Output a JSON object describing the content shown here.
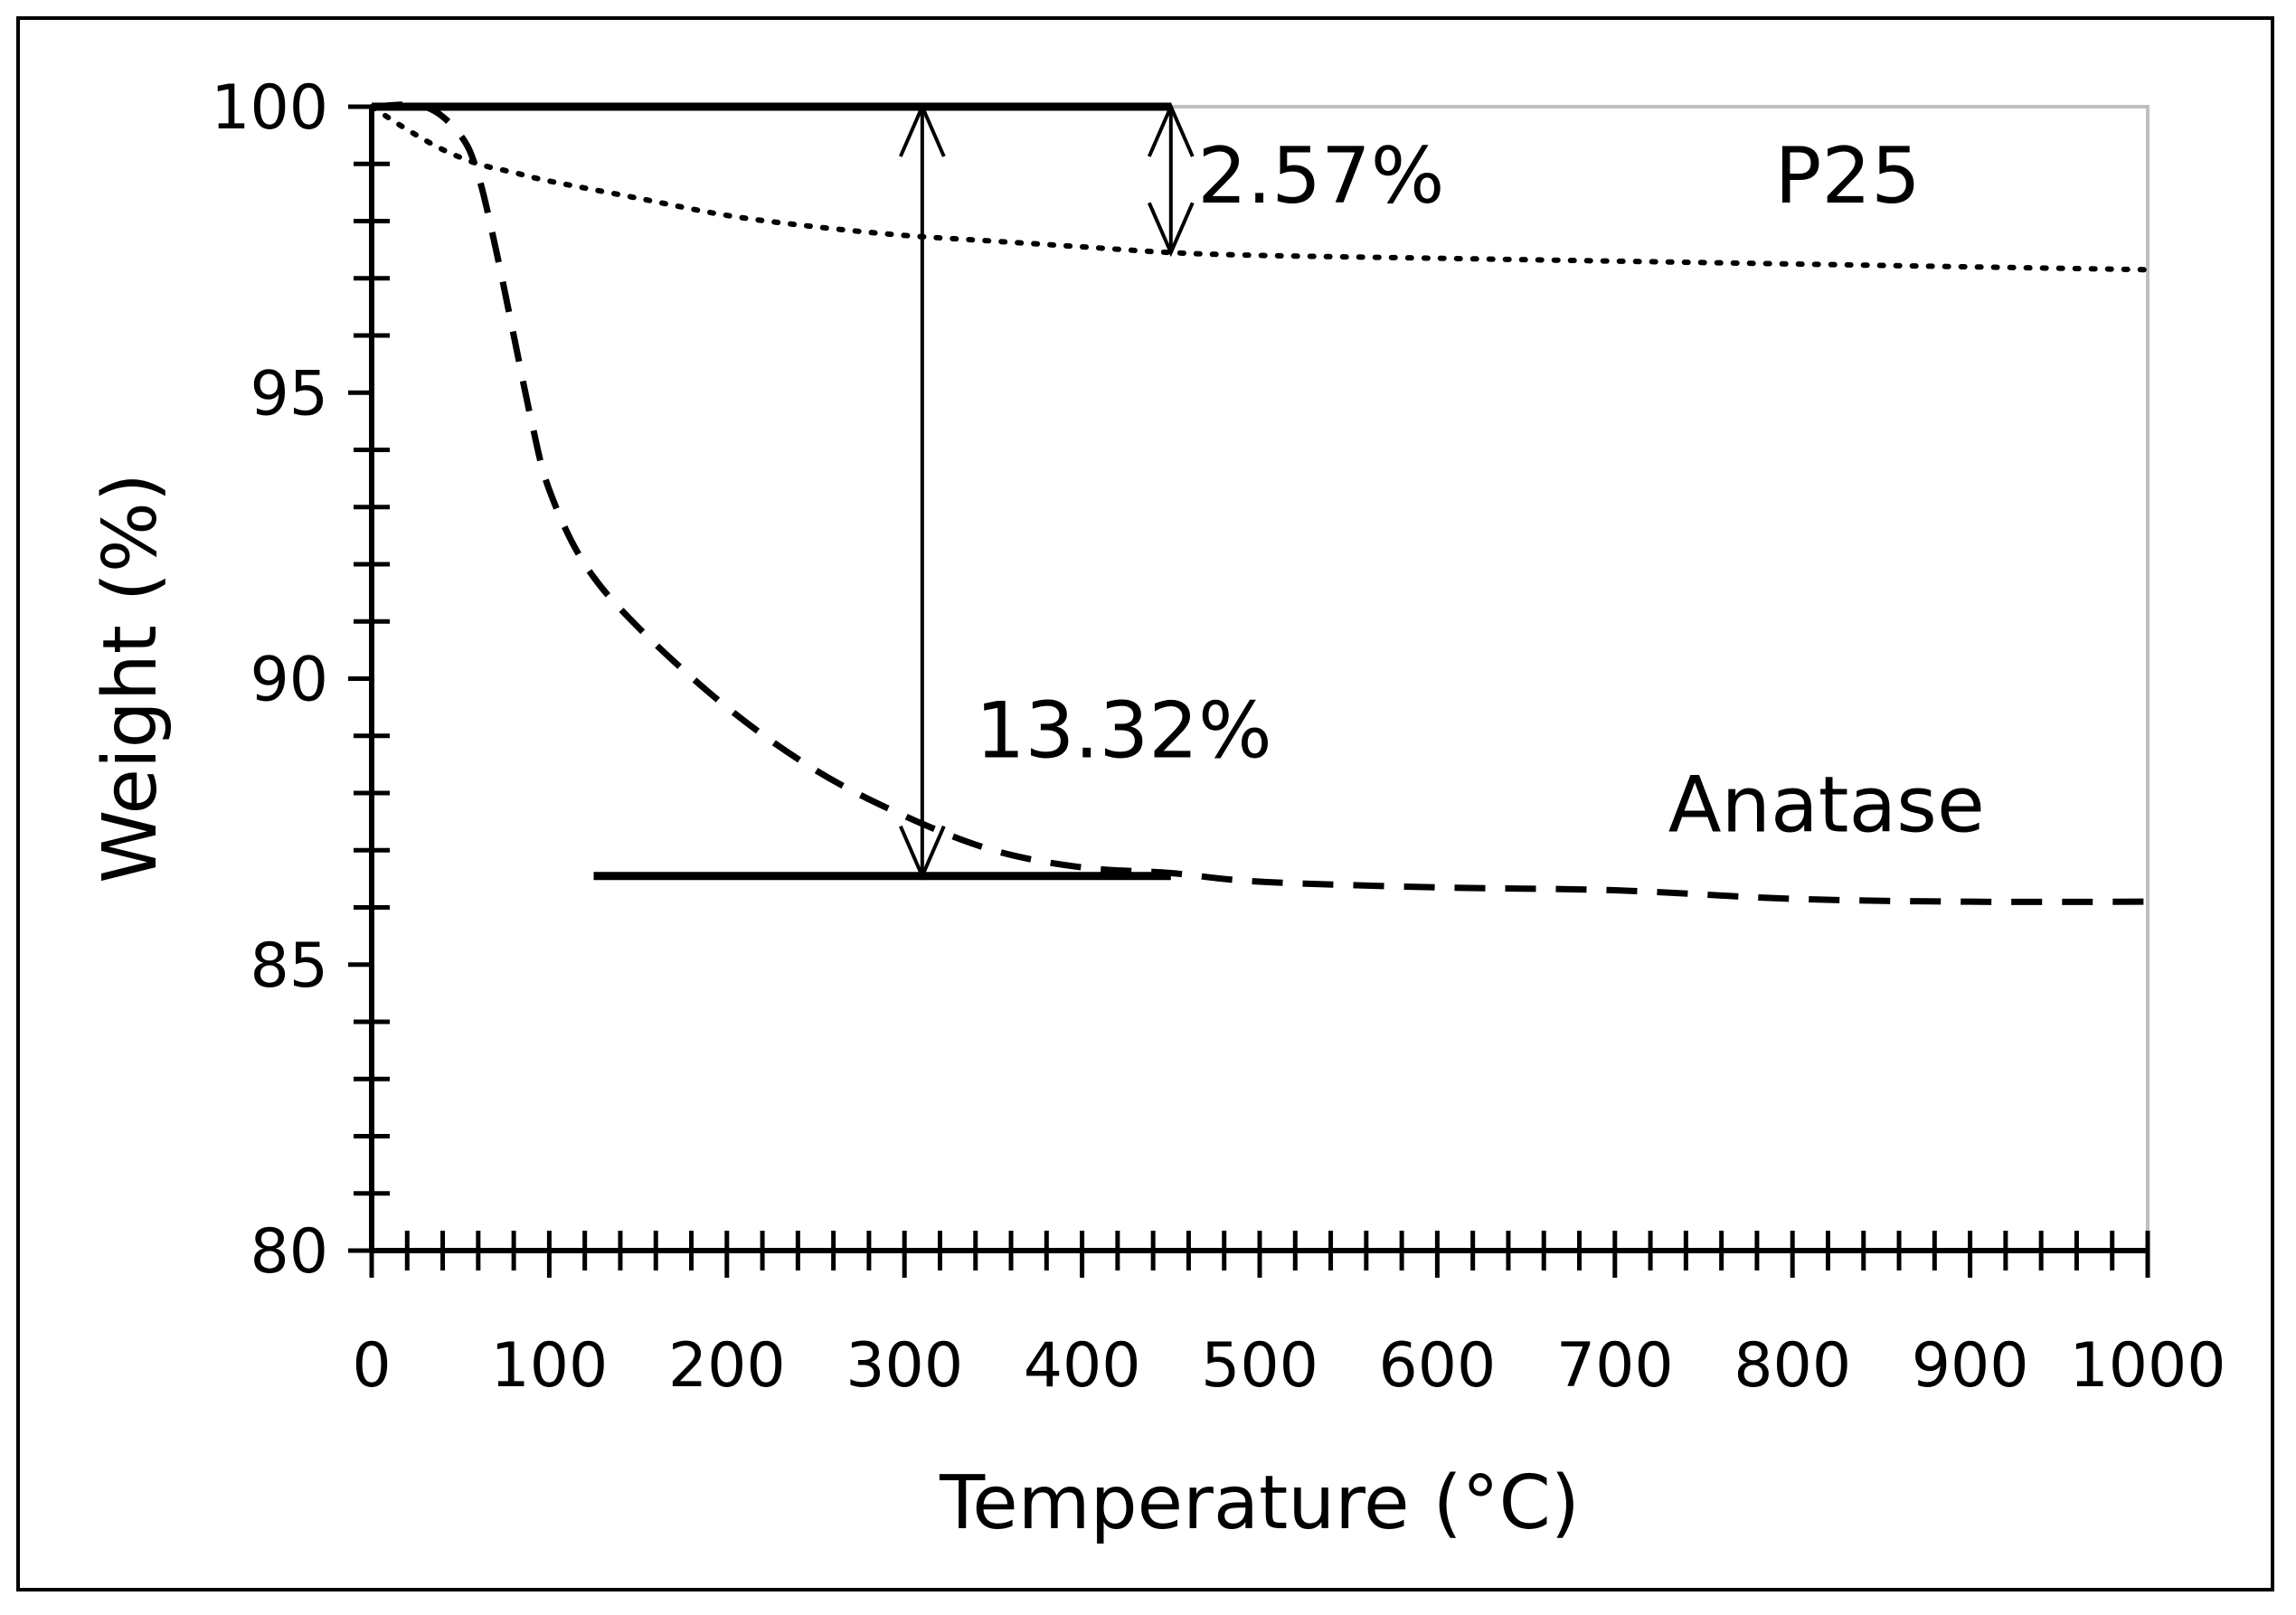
{
  "chart_data": {
    "type": "line",
    "title": "",
    "xlabel": "Temperature (°C)",
    "ylabel": "Weight (%)",
    "xlim": [
      0,
      1000
    ],
    "ylim": [
      80,
      100
    ],
    "x_ticks": [
      "0",
      "100",
      "200",
      "300",
      "400",
      "500",
      "600",
      "700",
      "800",
      "900",
      "1000"
    ],
    "y_ticks": [
      "80",
      "85",
      "90",
      "95",
      "100"
    ],
    "series": [
      {
        "name": "P25",
        "style": "dotted",
        "x": [
          0,
          20,
          40,
          60,
          80,
          100,
          150,
          200,
          250,
          300,
          350,
          400,
          450,
          500,
          600,
          700,
          800,
          900,
          1000
        ],
        "y": [
          100,
          99.6,
          99.25,
          99.0,
          98.85,
          98.7,
          98.4,
          98.1,
          97.9,
          97.75,
          97.65,
          97.55,
          97.45,
          97.4,
          97.35,
          97.3,
          97.25,
          97.2,
          97.15
        ]
      },
      {
        "name": "Anatase",
        "style": "dashed",
        "x": [
          0,
          30,
          50,
          60,
          70,
          80,
          90,
          100,
          120,
          150,
          200,
          250,
          300,
          350,
          400,
          450,
          500,
          600,
          700,
          800,
          900,
          1000
        ],
        "y": [
          100,
          100,
          99.5,
          98.8,
          97.5,
          96.0,
          94.5,
          93.3,
          92.0,
          90.9,
          89.5,
          88.4,
          87.6,
          87.0,
          86.7,
          86.6,
          86.45,
          86.35,
          86.3,
          86.15,
          86.1,
          86.1
        ]
      }
    ],
    "annotations": [
      {
        "label": "2.57%",
        "x": 465,
        "y": 98.8
      },
      {
        "label": "13.32%",
        "x": 340,
        "y": 89.1
      },
      {
        "label": "P25",
        "x": 790,
        "y": 98.8
      },
      {
        "label": "Anatase",
        "x": 730,
        "y": 87.8
      }
    ],
    "reference_lines": [
      {
        "y": 100,
        "x_from": 0,
        "x_to": 450
      },
      {
        "y": 86.55,
        "x_from": 125,
        "x_to": 450
      }
    ],
    "arrows": [
      {
        "x": 450,
        "y_from": 100,
        "y_to": 97.45
      },
      {
        "x": 310,
        "y_from": 100,
        "y_to": 86.55
      }
    ]
  }
}
